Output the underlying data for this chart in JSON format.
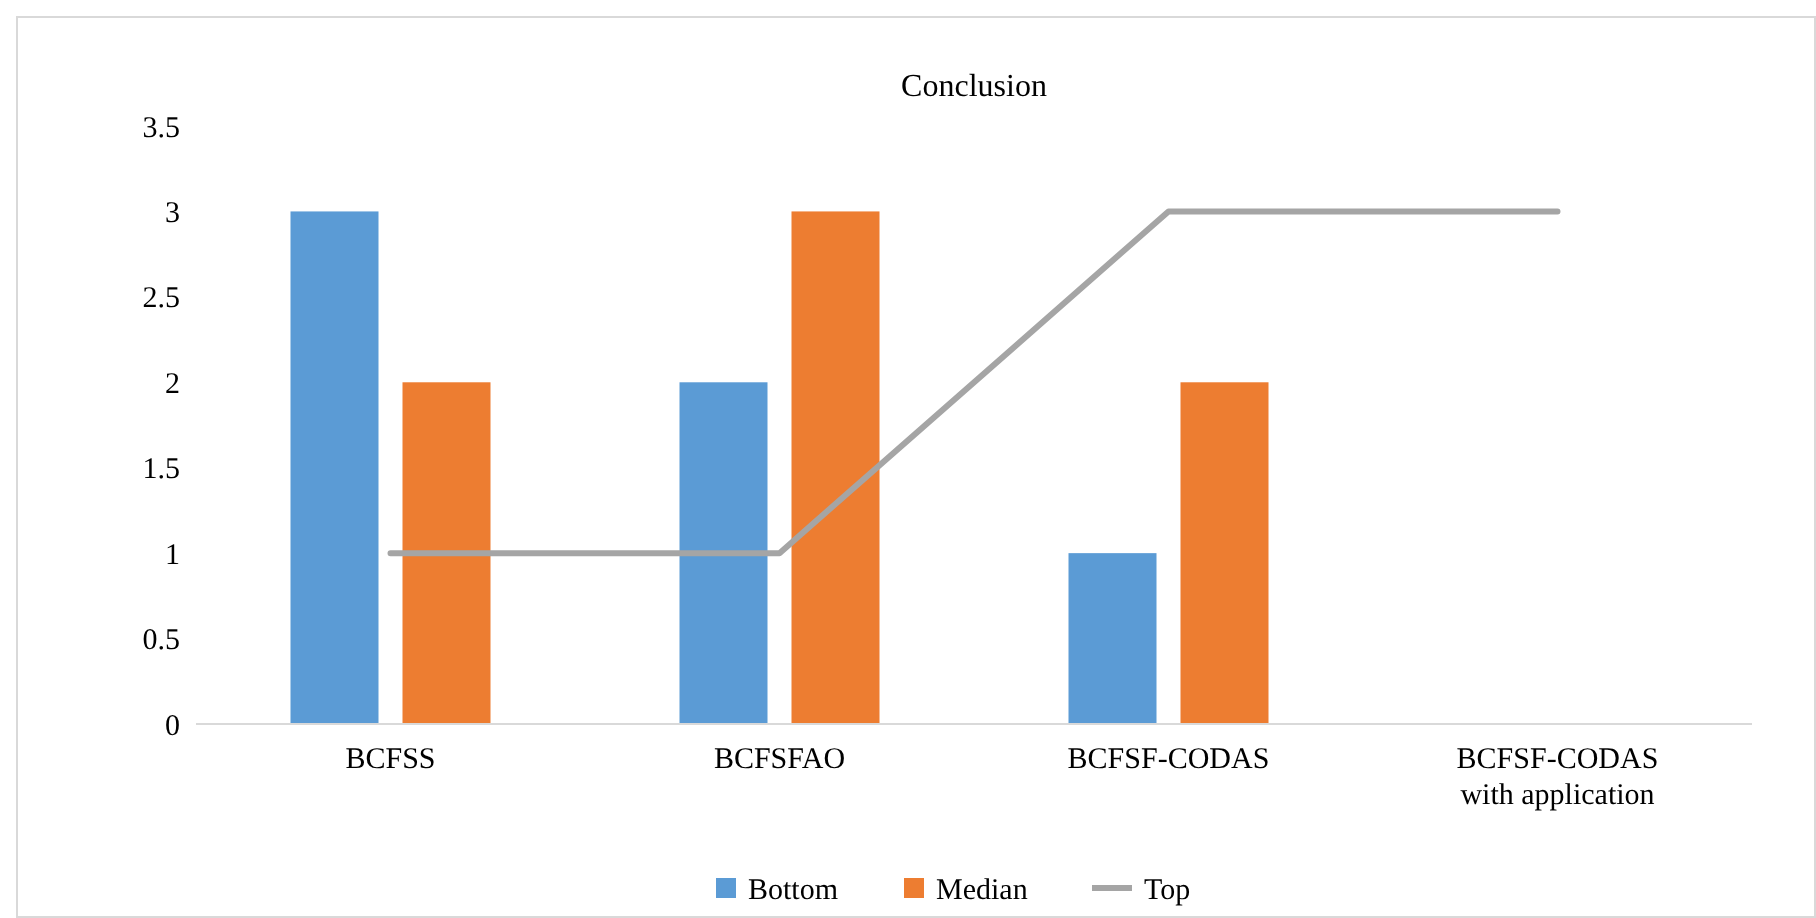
{
  "chart_data": {
    "type": "bar",
    "title": "Conclusion",
    "categories": [
      "BCFSS",
      "BCFSFAO",
      "BCFSF-CODAS",
      "BCFSF-CODAS with application"
    ],
    "series": [
      {
        "name": "Bottom",
        "color": "#5b9bd5",
        "values": [
          3,
          2,
          1,
          0
        ]
      },
      {
        "name": "Median",
        "color": "#ed7d31",
        "values": [
          2,
          3,
          2,
          0
        ]
      },
      {
        "name": "Top",
        "color": "#a5a5a5",
        "type": "line",
        "values": [
          1,
          1,
          3,
          3
        ]
      }
    ],
    "ylim": [
      0,
      3.5
    ],
    "yticks": [
      0,
      0.5,
      1,
      1.5,
      2,
      2.5,
      3,
      3.5
    ],
    "grid": false,
    "legend": "bottom",
    "marker": "none",
    "line_style": "solid"
  }
}
